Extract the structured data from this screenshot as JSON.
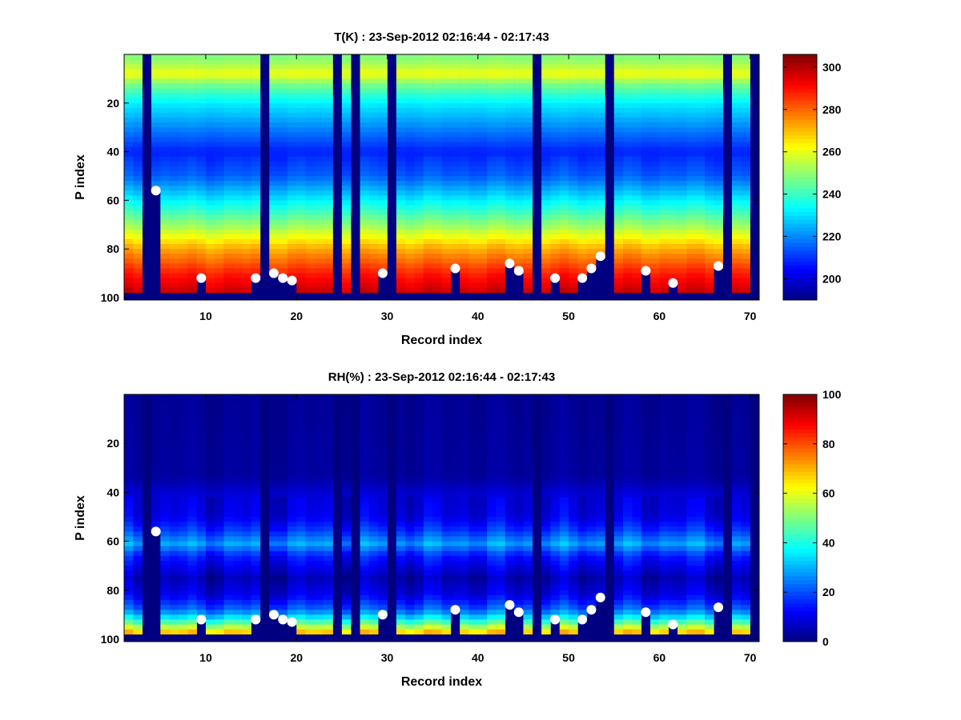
{
  "chart_data": [
    {
      "type": "heatmap",
      "title": "T(K) : 23-Sep-2012 02:16:44 - 02:17:43",
      "xlabel": "Record index",
      "ylabel": "P index",
      "xlim": [
        1,
        71
      ],
      "ylim": [
        0,
        101
      ],
      "y_reversed": true,
      "xticks": [
        10,
        20,
        30,
        40,
        50,
        60,
        70
      ],
      "yticks": [
        20,
        40,
        60,
        80,
        100
      ],
      "colormap": "jet",
      "colorbar": {
        "range": [
          190,
          306
        ],
        "ticks": [
          200,
          220,
          240,
          260,
          280,
          300
        ]
      },
      "profile_by_p_index": [
        {
          "p": 0,
          "value": 248
        },
        {
          "p": 4,
          "value": 252
        },
        {
          "p": 8,
          "value": 262
        },
        {
          "p": 12,
          "value": 248
        },
        {
          "p": 20,
          "value": 232
        },
        {
          "p": 30,
          "value": 220
        },
        {
          "p": 40,
          "value": 208
        },
        {
          "p": 50,
          "value": 215
        },
        {
          "p": 60,
          "value": 232
        },
        {
          "p": 70,
          "value": 250
        },
        {
          "p": 80,
          "value": 272
        },
        {
          "p": 90,
          "value": 288
        },
        {
          "p": 100,
          "value": 300
        }
      ],
      "missing_records": [
        3,
        16,
        24,
        26,
        30,
        46,
        54,
        67,
        70
      ],
      "points": [
        {
          "x": 4,
          "y": 56
        },
        {
          "x": 9,
          "y": 92
        },
        {
          "x": 15,
          "y": 92
        },
        {
          "x": 17,
          "y": 90
        },
        {
          "x": 18,
          "y": 92
        },
        {
          "x": 19,
          "y": 93
        },
        {
          "x": 29,
          "y": 90
        },
        {
          "x": 37,
          "y": 88
        },
        {
          "x": 43,
          "y": 86
        },
        {
          "x": 44,
          "y": 89
        },
        {
          "x": 48,
          "y": 92
        },
        {
          "x": 51,
          "y": 92
        },
        {
          "x": 52,
          "y": 88
        },
        {
          "x": 53,
          "y": 83
        },
        {
          "x": 58,
          "y": 89
        },
        {
          "x": 61,
          "y": 94
        },
        {
          "x": 66,
          "y": 87
        }
      ]
    },
    {
      "type": "heatmap",
      "title": "RH(%) : 23-Sep-2012 02:16:44 - 02:17:43",
      "xlabel": "Record index",
      "ylabel": "P index",
      "xlim": [
        1,
        71
      ],
      "ylim": [
        0,
        101
      ],
      "y_reversed": true,
      "xticks": [
        10,
        20,
        30,
        40,
        50,
        60,
        70
      ],
      "yticks": [
        20,
        40,
        60,
        80,
        100
      ],
      "colormap": "jet",
      "colorbar": {
        "range": [
          0,
          100
        ],
        "ticks": [
          0,
          20,
          40,
          60,
          80,
          100
        ]
      },
      "profile_by_p_index": [
        {
          "p": 0,
          "value": 2
        },
        {
          "p": 34,
          "value": 3
        },
        {
          "p": 40,
          "value": 8
        },
        {
          "p": 50,
          "value": 10
        },
        {
          "p": 56,
          "value": 18
        },
        {
          "p": 61,
          "value": 28
        },
        {
          "p": 66,
          "value": 15
        },
        {
          "p": 75,
          "value": 5
        },
        {
          "p": 82,
          "value": 10
        },
        {
          "p": 88,
          "value": 22
        },
        {
          "p": 92,
          "value": 38
        },
        {
          "p": 95,
          "value": 55
        },
        {
          "p": 98,
          "value": 72
        }
      ],
      "missing_records": [
        3,
        16,
        24,
        26,
        30,
        46,
        54,
        67,
        70
      ],
      "points": [
        {
          "x": 4,
          "y": 56
        },
        {
          "x": 9,
          "y": 92
        },
        {
          "x": 15,
          "y": 92
        },
        {
          "x": 17,
          "y": 90
        },
        {
          "x": 18,
          "y": 92
        },
        {
          "x": 19,
          "y": 93
        },
        {
          "x": 29,
          "y": 90
        },
        {
          "x": 37,
          "y": 88
        },
        {
          "x": 43,
          "y": 86
        },
        {
          "x": 44,
          "y": 89
        },
        {
          "x": 48,
          "y": 92
        },
        {
          "x": 51,
          "y": 92
        },
        {
          "x": 52,
          "y": 88
        },
        {
          "x": 53,
          "y": 83
        },
        {
          "x": 58,
          "y": 89
        },
        {
          "x": 61,
          "y": 94
        },
        {
          "x": 66,
          "y": 87
        }
      ]
    }
  ]
}
